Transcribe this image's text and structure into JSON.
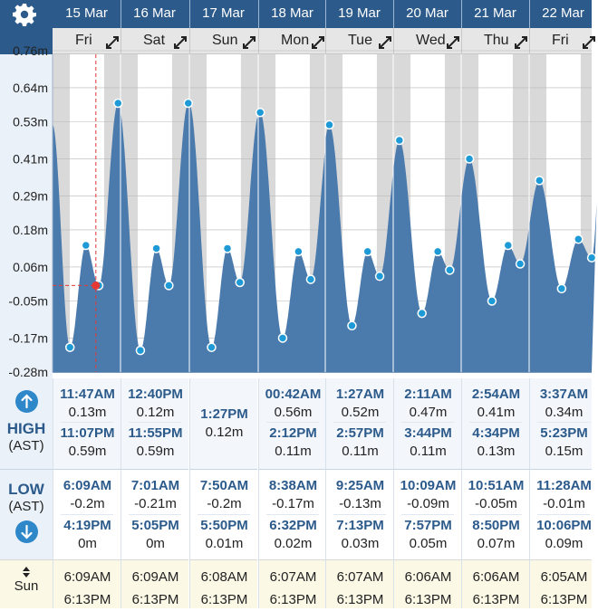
{
  "days": [
    {
      "date": "15 Mar",
      "dow": "Fri",
      "high": [
        {
          "time": "11:47AM",
          "height": "0.13m"
        },
        {
          "time": "11:07PM",
          "height": "0.59m"
        }
      ],
      "low": [
        {
          "time": "6:09AM",
          "height": "-0.2m"
        },
        {
          "time": "4:19PM",
          "height": "0m"
        }
      ],
      "sunrise": "6:09AM",
      "sunset": "6:13PM"
    },
    {
      "date": "16 Mar",
      "dow": "Sat",
      "high": [
        {
          "time": "12:40PM",
          "height": "0.12m"
        },
        {
          "time": "11:55PM",
          "height": "0.59m"
        }
      ],
      "low": [
        {
          "time": "7:01AM",
          "height": "-0.21m"
        },
        {
          "time": "5:05PM",
          "height": "0m"
        }
      ],
      "sunrise": "6:09AM",
      "sunset": "6:13PM"
    },
    {
      "date": "17 Mar",
      "dow": "Sun",
      "high": [
        {
          "time": "1:27PM",
          "height": "0.12m"
        }
      ],
      "low": [
        {
          "time": "7:50AM",
          "height": "-0.2m"
        },
        {
          "time": "5:50PM",
          "height": "0.01m"
        }
      ],
      "sunrise": "6:08AM",
      "sunset": "6:13PM"
    },
    {
      "date": "18 Mar",
      "dow": "Mon",
      "high": [
        {
          "time": "00:42AM",
          "height": "0.56m"
        },
        {
          "time": "2:12PM",
          "height": "0.11m"
        }
      ],
      "low": [
        {
          "time": "8:38AM",
          "height": "-0.17m"
        },
        {
          "time": "6:32PM",
          "height": "0.02m"
        }
      ],
      "sunrise": "6:07AM",
      "sunset": "6:13PM"
    },
    {
      "date": "19 Mar",
      "dow": "Tue",
      "high": [
        {
          "time": "1:27AM",
          "height": "0.52m"
        },
        {
          "time": "2:57PM",
          "height": "0.11m"
        }
      ],
      "low": [
        {
          "time": "9:25AM",
          "height": "-0.13m"
        },
        {
          "time": "7:13PM",
          "height": "0.03m"
        }
      ],
      "sunrise": "6:07AM",
      "sunset": "6:13PM"
    },
    {
      "date": "20 Mar",
      "dow": "Wed",
      "high": [
        {
          "time": "2:11AM",
          "height": "0.47m"
        },
        {
          "time": "3:44PM",
          "height": "0.11m"
        }
      ],
      "low": [
        {
          "time": "10:09AM",
          "height": "-0.09m"
        },
        {
          "time": "7:57PM",
          "height": "0.05m"
        }
      ],
      "sunrise": "6:06AM",
      "sunset": "6:13PM"
    },
    {
      "date": "21 Mar",
      "dow": "Thu",
      "high": [
        {
          "time": "2:54AM",
          "height": "0.41m"
        },
        {
          "time": "4:34PM",
          "height": "0.13m"
        }
      ],
      "low": [
        {
          "time": "10:51AM",
          "height": "-0.05m"
        },
        {
          "time": "8:50PM",
          "height": "0.07m"
        }
      ],
      "sunrise": "6:06AM",
      "sunset": "6:13PM"
    },
    {
      "date": "22 Mar",
      "dow": "Fri",
      "high": [
        {
          "time": "3:37AM",
          "height": "0.34m"
        },
        {
          "time": "5:23PM",
          "height": "0.15m"
        }
      ],
      "low": [
        {
          "time": "11:28AM",
          "height": "-0.01m"
        },
        {
          "time": "10:06PM",
          "height": "0.09m"
        }
      ],
      "sunrise": "6:05AM",
      "sunset": "6:13PM"
    }
  ],
  "labels": {
    "high": "HIGH",
    "low": "LOW",
    "tz": "(AST)",
    "sun": "Sun"
  },
  "colors": {
    "header": "#2b5a8b",
    "fill": "#4b7aad",
    "point": "#1e9ad6",
    "now": "#e53935",
    "night": "#d9d9d9"
  },
  "icons": {
    "settings": "gear-icon",
    "expand": "expand-arrows-icon",
    "up": "arrow-up-icon",
    "down": "arrow-down-icon",
    "sun": "sun-up-down-icon"
  },
  "chart_data": {
    "type": "area",
    "y_ticks": [
      "0.76m",
      "0.64m",
      "0.53m",
      "0.41m",
      "0.29m",
      "0.18m",
      "0.06m",
      "-0.05m",
      "-0.17m",
      "-0.28m"
    ],
    "ylim": [
      -0.28,
      0.76
    ],
    "x_start_day": "15 Mar",
    "x_days": 8,
    "current_time_hours": 15.3,
    "current_height": 0.0,
    "extremes": [
      {
        "h": 0.0,
        "v": 0.52
      },
      {
        "h": 6.15,
        "v": -0.2
      },
      {
        "h": 11.78,
        "v": 0.13
      },
      {
        "h": 16.32,
        "v": 0.0
      },
      {
        "h": 23.12,
        "v": 0.59
      },
      {
        "h": 31.02,
        "v": -0.21
      },
      {
        "h": 36.67,
        "v": 0.12
      },
      {
        "h": 41.08,
        "v": 0.0
      },
      {
        "h": 47.92,
        "v": 0.59
      },
      {
        "h": 55.83,
        "v": -0.2
      },
      {
        "h": 61.45,
        "v": 0.12
      },
      {
        "h": 65.83,
        "v": 0.01
      },
      {
        "h": 72.7,
        "v": 0.56
      },
      {
        "h": 80.63,
        "v": -0.17
      },
      {
        "h": 86.2,
        "v": 0.11
      },
      {
        "h": 90.53,
        "v": 0.02
      },
      {
        "h": 97.45,
        "v": 0.52
      },
      {
        "h": 105.42,
        "v": -0.13
      },
      {
        "h": 110.95,
        "v": 0.11
      },
      {
        "h": 115.22,
        "v": 0.03
      },
      {
        "h": 122.18,
        "v": 0.47
      },
      {
        "h": 130.15,
        "v": -0.09
      },
      {
        "h": 135.73,
        "v": 0.11
      },
      {
        "h": 139.95,
        "v": 0.05
      },
      {
        "h": 146.9,
        "v": 0.41
      },
      {
        "h": 154.85,
        "v": -0.05
      },
      {
        "h": 160.57,
        "v": 0.13
      },
      {
        "h": 164.83,
        "v": 0.07
      },
      {
        "h": 171.62,
        "v": 0.34
      },
      {
        "h": 179.47,
        "v": -0.01
      },
      {
        "h": 185.38,
        "v": 0.15
      },
      {
        "h": 190.1,
        "v": 0.09
      }
    ],
    "sun": {
      "sunrise_hours": 6.1,
      "sunset_hours": 18.22
    }
  }
}
